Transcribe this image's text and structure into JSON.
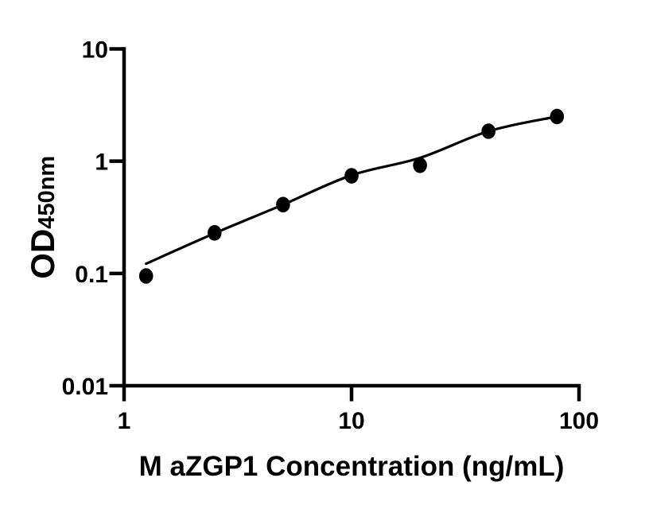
{
  "figure": {
    "background_color": "#ffffff",
    "ink_color": "#000000"
  },
  "chart_data": {
    "type": "scatter",
    "description": "ELISA standard curve with fitted line on log-log axes",
    "title": "",
    "xlabel": "M aZGP1 Concentration (ng/mL)",
    "ylabel_main": "OD",
    "ylabel_sub": "450nm",
    "x_scale": "log10",
    "y_scale": "log10",
    "xlim": [
      1,
      100
    ],
    "ylim": [
      0.01,
      10
    ],
    "grid": false,
    "legend": "none",
    "x_ticks": [
      {
        "value": 1,
        "label": "1"
      },
      {
        "value": 10,
        "label": "10"
      },
      {
        "value": 100,
        "label": "100"
      }
    ],
    "y_ticks": [
      {
        "value": 10,
        "label": "10"
      },
      {
        "value": 1,
        "label": "1"
      },
      {
        "value": 0.1,
        "label": "0.1"
      },
      {
        "value": 0.01,
        "label": "0.01"
      }
    ],
    "series": [
      {
        "name": "measured-points",
        "type": "scatter",
        "marker": "filled-circle",
        "color": "#000000",
        "points": [
          [
            1.25,
            0.095
          ],
          [
            2.5,
            0.23
          ],
          [
            5,
            0.41
          ],
          [
            10,
            0.74
          ],
          [
            20,
            0.92
          ],
          [
            40,
            1.85
          ],
          [
            80,
            2.5
          ]
        ]
      },
      {
        "name": "fitted-curve",
        "type": "smooth-line",
        "color": "#000000",
        "points": [
          [
            1.25,
            0.122
          ],
          [
            2.5,
            0.228
          ],
          [
            5,
            0.41
          ],
          [
            10,
            0.75
          ],
          [
            20,
            1.07
          ],
          [
            40,
            1.85
          ],
          [
            80,
            2.5
          ]
        ]
      }
    ]
  }
}
